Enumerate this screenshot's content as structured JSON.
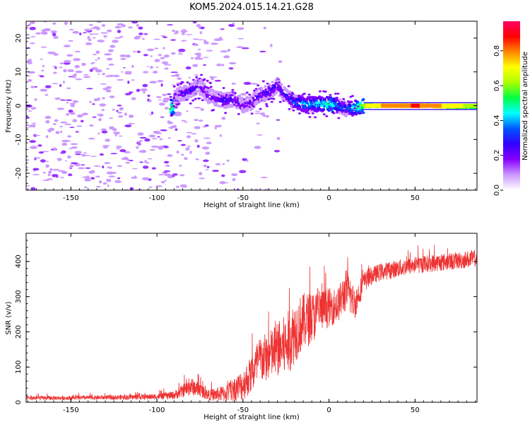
{
  "title": "KOM5.2024.015.14.21.G28",
  "chart_data": [
    {
      "type": "heatmap",
      "xlabel": "Height of straight line (km)",
      "ylabel": "Frequency (Hz)",
      "xlim": [
        -176,
        86
      ],
      "ylim": [
        -25,
        25
      ],
      "xticks": [
        -150,
        -100,
        -50,
        0,
        50
      ],
      "yticks": [
        -20,
        -10,
        0,
        10,
        20
      ],
      "colorbar": {
        "label": "Normalized spectral amplitude",
        "range": [
          0,
          0.97
        ],
        "ticks": [
          0.0,
          0.2,
          0.4,
          0.6,
          0.8
        ],
        "colors": [
          "#ffffff",
          "#cc99ff",
          "#8800ff",
          "#3300ff",
          "#0055ff",
          "#00ffff",
          "#00ff44",
          "#aaff00",
          "#ffff00",
          "#ff8800",
          "#ff0000",
          "#ff0066"
        ]
      },
      "ridge": {
        "description_points_x": [
          -90,
          -82,
          -75,
          -70,
          -65,
          -60,
          -55,
          -50,
          -45,
          -40,
          -35,
          -30,
          -25,
          -20,
          -15,
          -10,
          -5,
          0,
          5,
          10,
          15,
          20,
          30,
          40,
          50,
          60,
          70,
          80,
          86
        ],
        "frequency_hz": [
          3,
          4,
          6,
          3,
          2,
          1.5,
          2,
          0,
          1,
          3,
          4,
          6,
          3,
          1,
          0.5,
          0.5,
          0.5,
          0.5,
          0,
          -1,
          -0.5,
          0,
          0,
          0,
          0,
          0,
          -0.5,
          -0.5,
          -0.5
        ],
        "amplitude": [
          0.25,
          0.3,
          0.3,
          0.25,
          0.3,
          0.35,
          0.3,
          0.25,
          0.3,
          0.3,
          0.35,
          0.3,
          0.3,
          0.4,
          0.45,
          0.45,
          0.5,
          0.55,
          0.45,
          0.35,
          0.5,
          0.65,
          0.75,
          0.8,
          0.85,
          0.8,
          0.7,
          0.65,
          0.6
        ]
      }
    },
    {
      "type": "line",
      "xlabel": "Height of straight line (km)",
      "ylabel": "SNR (v/v)",
      "xlim": [
        -176,
        86
      ],
      "ylim": [
        0,
        480
      ],
      "xticks": [
        -150,
        -100,
        -50,
        0,
        50
      ],
      "yticks": [
        0,
        100,
        200,
        300,
        400
      ],
      "line_color": "#ee3333",
      "series": [
        {
          "x": [
            -176,
            -160,
            -140,
            -120,
            -100,
            -90,
            -80,
            -75,
            -70,
            -60,
            -50,
            -45,
            -40,
            -35,
            -30,
            -25,
            -20,
            -15,
            -10,
            -5,
            0,
            5,
            10,
            15,
            20,
            25,
            30,
            40,
            50,
            60,
            70,
            80,
            86
          ],
          "y": [
            12,
            12,
            13,
            14,
            16,
            20,
            45,
            35,
            20,
            25,
            50,
            80,
            120,
            130,
            150,
            160,
            200,
            230,
            240,
            260,
            270,
            275,
            320,
            280,
            340,
            360,
            370,
            380,
            390,
            395,
            400,
            405,
            410
          ],
          "noise": [
            6,
            6,
            6,
            7,
            8,
            12,
            25,
            20,
            15,
            25,
            45,
            55,
            70,
            70,
            80,
            90,
            90,
            80,
            75,
            60,
            55,
            50,
            60,
            45,
            30,
            25,
            25,
            25,
            25,
            25,
            25,
            25,
            25
          ]
        }
      ]
    }
  ]
}
